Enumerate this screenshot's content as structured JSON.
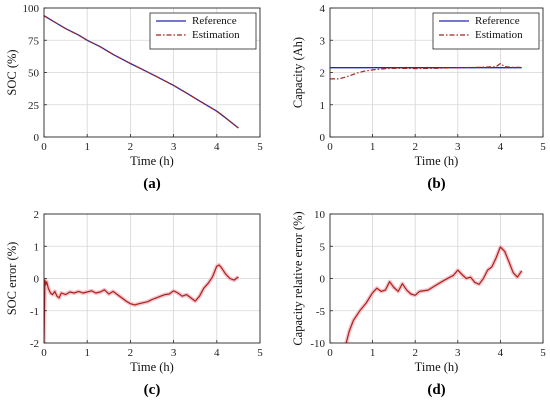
{
  "colors": {
    "reference": "#2626b8",
    "estimation": "#a0261e",
    "error": "#b0201a",
    "halo": "#f2c4cc"
  },
  "chart_data": [
    {
      "id": "a",
      "type": "line",
      "panel_label": "(a)",
      "xlabel": "Time (h)",
      "ylabel": "SOC (%)",
      "xlim": [
        0,
        5
      ],
      "ylim": [
        0,
        100
      ],
      "xticks": [
        0,
        1,
        2,
        3,
        4,
        5
      ],
      "yticks": [
        0,
        25,
        50,
        75,
        100
      ],
      "grid": true,
      "legend": "top-right",
      "series": [
        {
          "name": "Reference",
          "style": "solid",
          "color": "reference",
          "x": [
            0,
            0.1,
            0.3,
            0.5,
            0.8,
            1.0,
            1.3,
            1.6,
            2.0,
            2.3,
            2.6,
            3.0,
            3.3,
            3.6,
            4.0,
            4.2,
            4.5
          ],
          "y": [
            94,
            92,
            88,
            84,
            79,
            75,
            70,
            64,
            57,
            52,
            47,
            40,
            34,
            28,
            20,
            15,
            7
          ]
        },
        {
          "name": "Estimation",
          "style": "dashdot",
          "color": "estimation",
          "x": [
            0,
            0.1,
            0.3,
            0.5,
            0.8,
            1.0,
            1.3,
            1.6,
            2.0,
            2.3,
            2.6,
            3.0,
            3.3,
            3.6,
            4.0,
            4.2,
            4.5
          ],
          "y": [
            94,
            92,
            88,
            84,
            79,
            75,
            70,
            64,
            57,
            52,
            47,
            40,
            34,
            28,
            20,
            15,
            7
          ]
        }
      ]
    },
    {
      "id": "b",
      "type": "line",
      "panel_label": "(b)",
      "xlabel": "Time (h)",
      "ylabel": "Capacity (Ah)",
      "xlim": [
        0,
        5
      ],
      "ylim": [
        0,
        4
      ],
      "xticks": [
        0,
        1,
        2,
        3,
        4,
        5
      ],
      "yticks": [
        0,
        1,
        2,
        3,
        4
      ],
      "grid": true,
      "legend": "top-right",
      "series": [
        {
          "name": "Reference",
          "style": "solid",
          "color": "reference",
          "x": [
            0,
            4.5
          ],
          "y": [
            2.15,
            2.15
          ]
        },
        {
          "name": "Estimation",
          "style": "dashdot",
          "color": "estimation",
          "x": [
            0,
            0.2,
            0.4,
            0.6,
            0.8,
            1.0,
            1.3,
            1.6,
            2.0,
            2.5,
            3.0,
            3.5,
            3.9,
            4.0,
            4.1,
            4.3,
            4.5
          ],
          "y": [
            1.8,
            1.8,
            1.87,
            1.97,
            2.04,
            2.08,
            2.12,
            2.13,
            2.12,
            2.13,
            2.15,
            2.16,
            2.18,
            2.28,
            2.18,
            2.16,
            2.16
          ]
        }
      ]
    },
    {
      "id": "c",
      "type": "line",
      "panel_label": "(c)",
      "xlabel": "Time (h)",
      "ylabel": "SOC error (%)",
      "xlim": [
        0,
        5
      ],
      "ylim": [
        -2,
        2
      ],
      "xticks": [
        0,
        1,
        2,
        3,
        4,
        5
      ],
      "yticks": [
        -2,
        -1,
        0,
        1,
        2
      ],
      "grid": true,
      "series": [
        {
          "color": "error",
          "x": [
            0,
            0.02,
            0.04,
            0.06,
            0.1,
            0.15,
            0.2,
            0.25,
            0.3,
            0.35,
            0.4,
            0.5,
            0.6,
            0.7,
            0.8,
            0.9,
            1.0,
            1.1,
            1.2,
            1.3,
            1.4,
            1.5,
            1.6,
            1.7,
            1.8,
            1.9,
            2.0,
            2.1,
            2.2,
            2.3,
            2.4,
            2.5,
            2.6,
            2.7,
            2.8,
            2.9,
            3.0,
            3.1,
            3.2,
            3.3,
            3.4,
            3.5,
            3.6,
            3.7,
            3.8,
            3.9,
            4.0,
            4.05,
            4.1,
            4.2,
            4.3,
            4.4,
            4.5
          ],
          "y": [
            -2,
            -0.05,
            -0.2,
            -0.1,
            -0.3,
            -0.45,
            -0.5,
            -0.4,
            -0.55,
            -0.6,
            -0.45,
            -0.5,
            -0.42,
            -0.45,
            -0.4,
            -0.45,
            -0.42,
            -0.38,
            -0.45,
            -0.42,
            -0.35,
            -0.48,
            -0.4,
            -0.5,
            -0.6,
            -0.7,
            -0.78,
            -0.82,
            -0.78,
            -0.75,
            -0.72,
            -0.65,
            -0.6,
            -0.55,
            -0.5,
            -0.48,
            -0.38,
            -0.45,
            -0.55,
            -0.5,
            -0.6,
            -0.7,
            -0.55,
            -0.3,
            -0.15,
            0.05,
            0.38,
            0.42,
            0.35,
            0.15,
            0.0,
            -0.05,
            0.05
          ]
        }
      ]
    },
    {
      "id": "d",
      "type": "line",
      "panel_label": "(d)",
      "xlabel": "Time (h)",
      "ylabel": "Capacity relative error (%)",
      "xlim": [
        0,
        5
      ],
      "ylim": [
        -10,
        10
      ],
      "xticks": [
        0,
        1,
        2,
        3,
        4,
        5
      ],
      "yticks": [
        -10,
        -5,
        0,
        5,
        10
      ],
      "grid": true,
      "series": [
        {
          "color": "error",
          "x": [
            0.38,
            0.45,
            0.55,
            0.7,
            0.85,
            1.0,
            1.1,
            1.2,
            1.3,
            1.4,
            1.5,
            1.6,
            1.7,
            1.8,
            1.9,
            2.0,
            2.1,
            2.3,
            2.5,
            2.7,
            2.9,
            3.0,
            3.1,
            3.2,
            3.3,
            3.4,
            3.5,
            3.6,
            3.7,
            3.8,
            3.9,
            4.0,
            4.1,
            4.2,
            4.3,
            4.4,
            4.5
          ],
          "y": [
            -10,
            -8.2,
            -6.5,
            -5.0,
            -3.8,
            -2.2,
            -1.5,
            -2.0,
            -1.8,
            -0.5,
            -1.4,
            -2.0,
            -0.8,
            -1.8,
            -2.4,
            -2.6,
            -2.0,
            -1.8,
            -1.0,
            -0.2,
            0.5,
            1.3,
            0.6,
            0.0,
            0.2,
            -0.6,
            -0.9,
            0.0,
            1.3,
            1.8,
            3.2,
            4.9,
            4.2,
            2.6,
            0.9,
            0.2,
            1.2
          ]
        }
      ]
    }
  ]
}
